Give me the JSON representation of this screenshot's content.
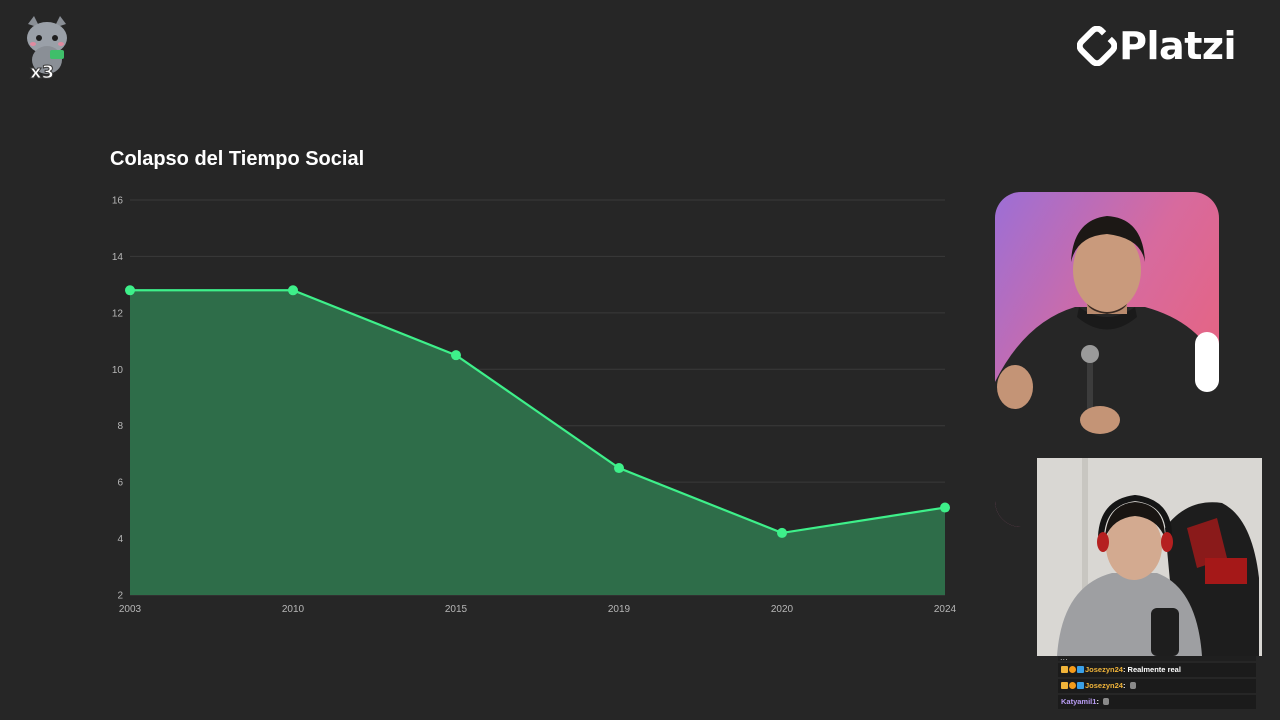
{
  "brand": {
    "name": "Platzi"
  },
  "overlay": {
    "cat_logo_text": "x3"
  },
  "chart_data": {
    "type": "area",
    "title": "Colapso del Tiempo Social",
    "categories": [
      "2003",
      "2010",
      "2015",
      "2019",
      "2020",
      "2024"
    ],
    "values": [
      12.8,
      12.8,
      10.5,
      6.5,
      4.2,
      5.1
    ],
    "ylim": [
      2,
      16
    ],
    "yticks": [
      2,
      4,
      6,
      8,
      10,
      12,
      14,
      16
    ],
    "grid": true,
    "line_color": "#3ef08a",
    "fill_color": "#2e6d49",
    "xlabel": "",
    "ylabel": ""
  },
  "chat": {
    "top_cut_text": "...",
    "messages": [
      {
        "user": "Josezyn24",
        "text": "Realmente real",
        "user_color": "#f0b43a"
      },
      {
        "user": "Josezyn24",
        "text": "",
        "user_color": "#f0b43a"
      },
      {
        "user": "Katyamil1",
        "text": "",
        "user_color": "#b89cf3"
      }
    ]
  }
}
